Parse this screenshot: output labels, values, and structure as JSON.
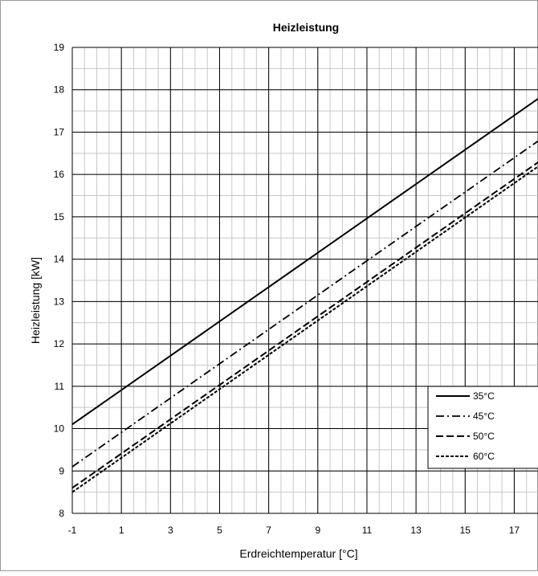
{
  "chart_data": {
    "type": "line",
    "title": "Heizleistung",
    "xlabel": "Erdreichtemperatur [°C]",
    "ylabel": "Heizleistung [kW]",
    "xlim": [
      -1,
      18
    ],
    "ylim": [
      8,
      19
    ],
    "x_ticks": [
      -1,
      1,
      3,
      5,
      7,
      9,
      11,
      13,
      15,
      17
    ],
    "y_ticks": [
      8,
      9,
      10,
      11,
      12,
      13,
      14,
      15,
      16,
      17,
      18,
      19
    ],
    "grid": true,
    "legend_position": "bottom-right",
    "series": [
      {
        "name": "35°C",
        "style": "solid",
        "x": [
          -1,
          18
        ],
        "y": [
          10.1,
          17.8
        ]
      },
      {
        "name": "45°C",
        "style": "dashdot",
        "x": [
          -1,
          18
        ],
        "y": [
          9.1,
          16.8
        ]
      },
      {
        "name": "50°C",
        "style": "dashed",
        "x": [
          -1,
          18
        ],
        "y": [
          8.6,
          16.3
        ]
      },
      {
        "name": "60°C",
        "style": "dotted",
        "x": [
          -1,
          18
        ],
        "y": [
          8.5,
          16.2
        ]
      }
    ],
    "colors": {
      "line": "#000000",
      "grid_major": "#000000",
      "grid_minor": "#c8c8c8"
    }
  }
}
